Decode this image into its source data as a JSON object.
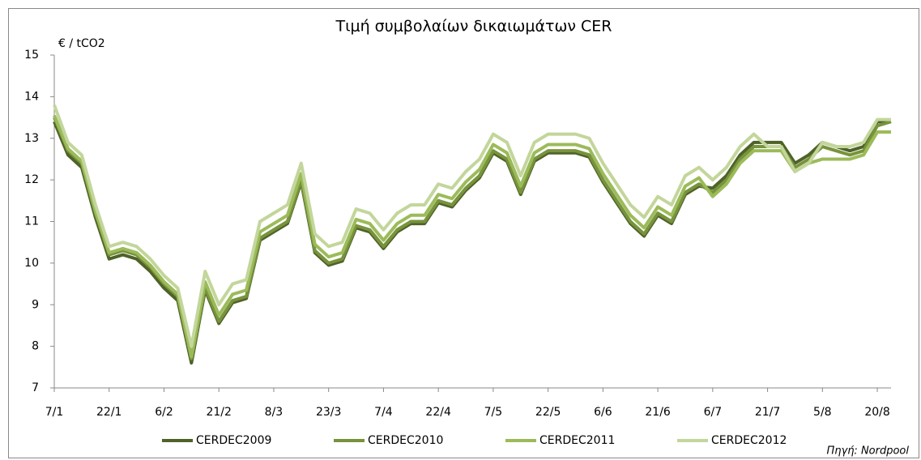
{
  "chart_data": {
    "type": "line",
    "title": "Τιμή συμβολαίων δικαιωμάτων CER",
    "y_axis_label": "€ / tCO2",
    "source": "Πηγή: Nordpool",
    "categories": [
      "7/1",
      null,
      null,
      null,
      "22/1",
      null,
      null,
      null,
      "6/2",
      null,
      null,
      null,
      "21/2",
      null,
      null,
      null,
      "8/3",
      null,
      null,
      null,
      "23/3",
      null,
      null,
      null,
      "7/4",
      null,
      null,
      null,
      "22/4",
      null,
      null,
      null,
      "7/5",
      null,
      null,
      null,
      "22/5",
      null,
      null,
      null,
      "6/6",
      null,
      null,
      null,
      "21/6",
      null,
      null,
      null,
      "6/7",
      null,
      null,
      null,
      "21/7",
      null,
      null,
      null,
      "5/8",
      null,
      null,
      null,
      "20/8",
      null
    ],
    "ylim": [
      7,
      15
    ],
    "yticks": [
      7,
      8,
      9,
      10,
      11,
      12,
      13,
      14,
      15
    ],
    "grid": false,
    "legend": "bottom",
    "series": [
      {
        "name": "CERDEC2009",
        "color": "#4f6228",
        "values": [
          13.4,
          12.6,
          12.3,
          11.1,
          10.1,
          10.2,
          10.1,
          9.8,
          9.4,
          9.1,
          7.6,
          9.35,
          8.55,
          9.05,
          9.15,
          10.55,
          10.75,
          10.95,
          11.95,
          10.25,
          9.95,
          10.05,
          10.85,
          10.75,
          10.35,
          10.75,
          10.95,
          10.95,
          11.45,
          11.35,
          11.75,
          12.05,
          12.65,
          12.45,
          11.65,
          12.45,
          12.65,
          12.65,
          12.65,
          12.55,
          11.95,
          11.45,
          10.95,
          10.65,
          11.15,
          10.95,
          11.65,
          11.85,
          11.8,
          12.1,
          12.6,
          12.9,
          12.9,
          12.9,
          12.4,
          12.6,
          12.9,
          12.8,
          12.7,
          12.8,
          13.4,
          13.4
        ]
      },
      {
        "name": "CERDEC2010",
        "color": "#77933c",
        "values": [
          13.5,
          12.7,
          12.4,
          11.2,
          10.2,
          10.3,
          10.2,
          9.9,
          9.5,
          9.2,
          7.7,
          9.4,
          8.6,
          9.1,
          9.2,
          10.6,
          10.8,
          11.0,
          12.0,
          10.3,
          10.0,
          10.1,
          10.9,
          10.8,
          10.4,
          10.8,
          11.0,
          11.0,
          11.5,
          11.4,
          11.8,
          12.1,
          12.7,
          12.5,
          11.7,
          12.5,
          12.7,
          12.7,
          12.7,
          12.6,
          12.0,
          11.5,
          11.0,
          10.7,
          11.2,
          11.0,
          11.7,
          11.9,
          11.7,
          12.0,
          12.5,
          12.8,
          12.8,
          12.8,
          12.3,
          12.5,
          12.8,
          12.7,
          12.6,
          12.7,
          13.3,
          13.4
        ]
      },
      {
        "name": "CERDEC2011",
        "color": "#9bbb59",
        "values": [
          13.55,
          12.75,
          12.45,
          11.25,
          10.25,
          10.35,
          10.25,
          9.95,
          9.55,
          9.25,
          7.75,
          9.55,
          8.75,
          9.25,
          9.35,
          10.75,
          10.95,
          11.15,
          12.15,
          10.45,
          10.15,
          10.25,
          11.05,
          10.95,
          10.55,
          10.95,
          11.15,
          11.15,
          11.65,
          11.55,
          11.95,
          12.25,
          12.85,
          12.65,
          11.85,
          12.65,
          12.85,
          12.85,
          12.85,
          12.75,
          12.15,
          11.65,
          11.15,
          10.85,
          11.35,
          11.15,
          11.85,
          12.05,
          11.6,
          11.9,
          12.4,
          12.7,
          12.7,
          12.7,
          12.2,
          12.4,
          12.5,
          12.5,
          12.5,
          12.6,
          13.15,
          13.15
        ]
      },
      {
        "name": "CERDEC2012",
        "color": "#c3d69b",
        "values": [
          13.8,
          12.9,
          12.6,
          11.4,
          10.4,
          10.5,
          10.4,
          10.1,
          9.7,
          9.4,
          8.0,
          9.8,
          9.0,
          9.5,
          9.6,
          11.0,
          11.2,
          11.4,
          12.4,
          10.7,
          10.4,
          10.5,
          11.3,
          11.2,
          10.8,
          11.2,
          11.4,
          11.4,
          11.9,
          11.8,
          12.2,
          12.5,
          13.1,
          12.9,
          12.1,
          12.9,
          13.1,
          13.1,
          13.1,
          13.0,
          12.4,
          11.9,
          11.4,
          11.1,
          11.6,
          11.4,
          12.1,
          12.3,
          12.0,
          12.3,
          12.8,
          13.1,
          12.8,
          12.8,
          12.2,
          12.4,
          12.9,
          12.8,
          12.8,
          12.9,
          13.45,
          13.45
        ]
      }
    ]
  }
}
